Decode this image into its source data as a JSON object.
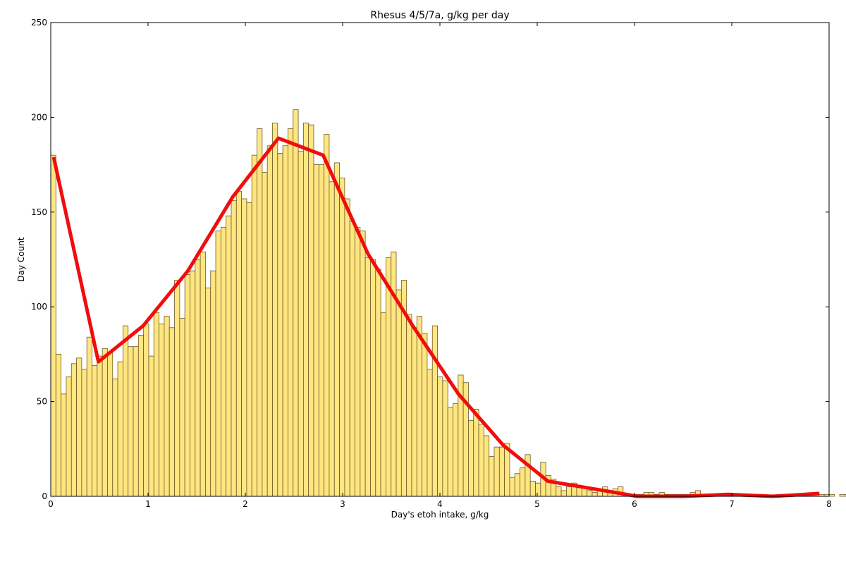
{
  "chart_data": {
    "type": "bar",
    "title": "Rhesus 4/5/7a, g/kg per day",
    "xlabel": "Day's etoh intake, g/kg",
    "ylabel": "Day Count",
    "xlim": [
      0,
      8
    ],
    "ylim": [
      0,
      250
    ],
    "x_ticks": [
      "0",
      "1",
      "2",
      "3",
      "4",
      "5",
      "6",
      "7",
      "8"
    ],
    "y_ticks": [
      "0",
      "50",
      "100",
      "150",
      "200",
      "250"
    ],
    "grid": false,
    "colors": {
      "bar_fill": "#ffe680",
      "bar_edge": "#6b5a2a",
      "line": "#f20d0d"
    },
    "histogram": {
      "bin_start": 0,
      "bin_width": 0.053,
      "values": [
        180,
        75,
        54,
        63,
        70,
        73,
        67,
        84,
        69,
        74,
        78,
        76,
        62,
        71,
        90,
        79,
        79,
        85,
        91,
        74,
        97,
        91,
        95,
        89,
        114,
        94,
        117,
        119,
        125,
        129,
        110,
        119,
        140,
        142,
        148,
        156,
        161,
        157,
        155,
        180,
        194,
        171,
        185,
        197,
        181,
        185,
        194,
        204,
        182,
        197,
        196,
        175,
        175,
        191,
        166,
        176,
        168,
        157,
        145,
        142,
        140,
        126,
        125,
        120,
        97,
        126,
        129,
        109,
        114,
        96,
        89,
        95,
        86,
        67,
        90,
        63,
        61,
        47,
        49,
        64,
        60,
        40,
        46,
        38,
        32,
        21,
        26,
        26,
        28,
        10,
        12,
        15,
        22,
        8,
        7,
        18,
        11,
        9,
        5,
        3,
        5,
        7,
        5,
        5,
        3,
        2,
        3,
        5,
        3,
        4,
        5,
        1,
        1,
        1,
        1,
        2,
        2,
        1,
        2,
        1,
        1,
        1,
        1,
        1,
        2,
        3,
        1,
        0,
        1,
        0,
        0,
        0,
        0,
        0,
        0,
        0,
        0,
        0,
        0,
        0,
        0,
        0,
        0,
        0,
        0,
        0,
        0,
        1,
        2,
        1,
        1,
        1,
        0,
        1,
        1
      ]
    },
    "line": {
      "x": [
        0.03,
        0.49,
        0.95,
        1.41,
        1.87,
        2.34,
        2.8,
        3.26,
        3.72,
        4.19,
        4.65,
        5.11,
        5.57,
        6.03,
        6.5,
        6.96,
        7.42,
        7.9
      ],
      "y": [
        179,
        71,
        90,
        119,
        158,
        189,
        180,
        128,
        90,
        54,
        27,
        8,
        4,
        0,
        0,
        1,
        0,
        1.5
      ]
    }
  }
}
